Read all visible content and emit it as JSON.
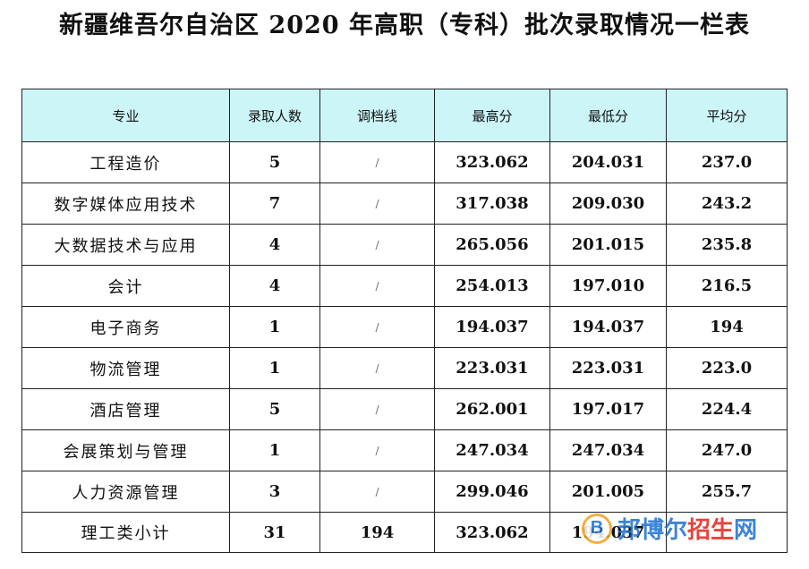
{
  "title": "新疆维吾尔自治区 2020 年高职（专科）批次录取情况一栏表",
  "headers": [
    "专业",
    "录取人数",
    "调档线",
    "最高分",
    "最低分",
    "平均分"
  ],
  "rows": [
    {
      "major": "工程造价",
      "count": "5",
      "line": "/",
      "max": "323.062",
      "min": "204.031",
      "avg": "237.0"
    },
    {
      "major": "数字媒体应用技术",
      "count": "7",
      "line": "/",
      "max": "317.038",
      "min": "209.030",
      "avg": "243.2"
    },
    {
      "major": "大数据技术与应用",
      "count": "4",
      "line": "/",
      "max": "265.056",
      "min": "201.015",
      "avg": "235.8"
    },
    {
      "major": "会计",
      "count": "4",
      "line": "/",
      "max": "254.013",
      "min": "197.010",
      "avg": "216.5"
    },
    {
      "major": "电子商务",
      "count": "1",
      "line": "/",
      "max": "194.037",
      "min": "194.037",
      "avg": "194"
    },
    {
      "major": "物流管理",
      "count": "1",
      "line": "/",
      "max": "223.031",
      "min": "223.031",
      "avg": "223.0"
    },
    {
      "major": "酒店管理",
      "count": "5",
      "line": "/",
      "max": "262.001",
      "min": "197.017",
      "avg": "224.4"
    },
    {
      "major": "会展策划与管理",
      "count": "1",
      "line": "/",
      "max": "247.034",
      "min": "247.034",
      "avg": "247.0"
    },
    {
      "major": "人力资源管理",
      "count": "3",
      "line": "/",
      "max": "299.046",
      "min": "201.005",
      "avg": "255.7"
    }
  ],
  "subtotal": {
    "major": "理工类小计",
    "count": "31",
    "line": "194",
    "max": "323.062",
    "min": "194.037",
    "avg": ""
  },
  "watermark": {
    "logo": "B",
    "text_a": "邦博尔",
    "text_b": "招生",
    "text_c": "网"
  }
}
